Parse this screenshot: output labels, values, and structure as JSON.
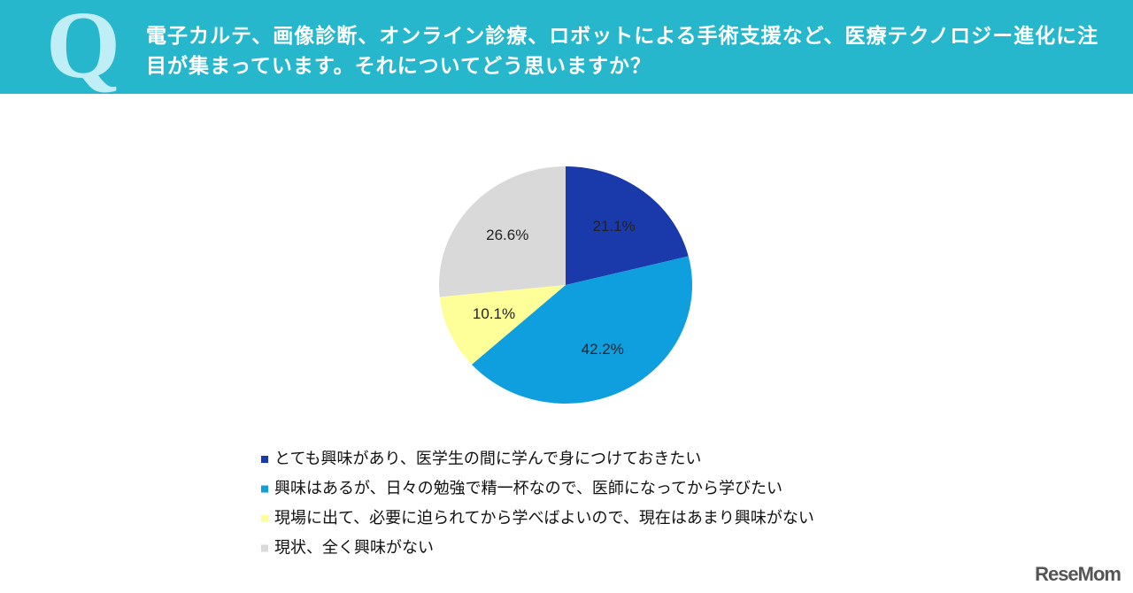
{
  "header": {
    "letter": "Q",
    "question": "電子カルテ、画像診断、オンライン診療、ロボットによる手術支援など、医療テクノロジー進化に注目が集まっています。それについてどう思いますか？"
  },
  "chart_data": {
    "type": "pie",
    "categories": [
      "とても興味があり、医学生の間に学んで身につけておきたい",
      "興味はあるが、日々の勉強で精一杯なので、医師になってから学びたい",
      "現場に出て、必要に迫られてから学べばよいので、現在はあまり興味がない",
      "現状、全く興味がない"
    ],
    "values": [
      21.1,
      42.2,
      10.1,
      26.6
    ],
    "value_labels": [
      "21.1%",
      "42.2%",
      "10.1%",
      "26.6%"
    ],
    "colors": [
      "#1a3aab",
      "#0f9fdf",
      "#ffff99",
      "#d9d9d9"
    ]
  },
  "watermark": "ReseMom"
}
